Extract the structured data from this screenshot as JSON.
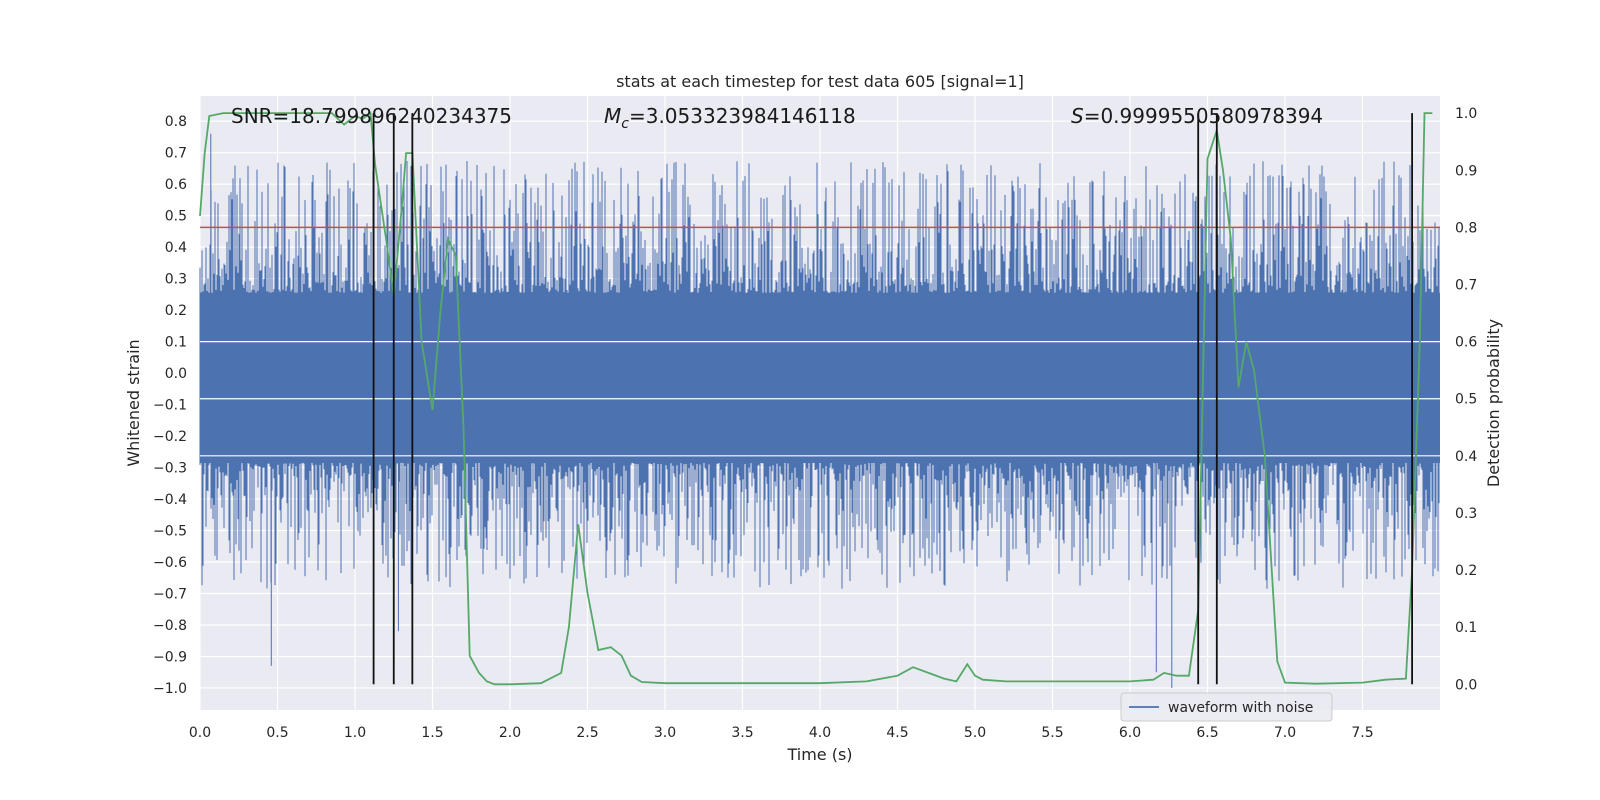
{
  "chart_data": {
    "type": "line",
    "title": "stats at each timestep for test data 605 [signal=1]",
    "xlabel": "Time (s)",
    "ylabel": "Whitened strain",
    "y2label": "Detection probability",
    "xlim": [
      0.0,
      8.0
    ],
    "ylim": [
      -1.07,
      0.88
    ],
    "y2lim": [
      -0.045,
      1.03
    ],
    "xticks": [
      "0.0",
      "0.5",
      "1.0",
      "1.5",
      "2.0",
      "2.5",
      "3.0",
      "3.5",
      "4.0",
      "4.5",
      "5.0",
      "5.5",
      "6.0",
      "6.5",
      "7.0",
      "7.5"
    ],
    "yticks": [
      "0.8",
      "0.7",
      "0.6",
      "0.5",
      "0.4",
      "0.3",
      "0.2",
      "0.1",
      "0.0",
      "−0.1",
      "−0.2",
      "−0.3",
      "−0.4",
      "−0.5",
      "−0.6",
      "−0.7",
      "−0.8",
      "−0.9",
      "−1.0"
    ],
    "y2ticks": [
      "1.0",
      "0.9",
      "0.8",
      "0.7",
      "0.6",
      "0.5",
      "0.4",
      "0.3",
      "0.2",
      "0.1",
      "0.0"
    ],
    "grid": true,
    "legend": {
      "placement": "bottom-right",
      "entries": [
        "waveform with noise"
      ]
    },
    "annotations": {
      "snr": "SNR=18.799896240234375",
      "mc_symbol": "M",
      "mc_sub": "c",
      "mc_value": "=3.053323984146118",
      "s_symbol": "S",
      "s_value": "=0.9999550580978394"
    },
    "threshold": {
      "axis": "y2",
      "value": 0.8
    },
    "detection_lines_x": [
      1.12,
      1.25,
      1.37,
      6.44,
      6.56,
      7.82
    ],
    "waveform": {
      "name": "waveform with noise",
      "band_upper": 0.255,
      "band_lower": -0.285,
      "spike_range": [
        -1.0,
        0.8
      ]
    },
    "probability": {
      "x": [
        0.0,
        0.03,
        0.06,
        0.15,
        0.3,
        0.5,
        0.7,
        0.85,
        0.93,
        1.0,
        1.05,
        1.1,
        1.13,
        1.2,
        1.25,
        1.3,
        1.33,
        1.37,
        1.43,
        1.5,
        1.55,
        1.6,
        1.65,
        1.7,
        1.74,
        1.8,
        1.85,
        1.9,
        2.0,
        2.2,
        2.33,
        2.38,
        2.44,
        2.5,
        2.57,
        2.65,
        2.72,
        2.78,
        2.85,
        3.0,
        3.5,
        4.0,
        4.3,
        4.5,
        4.6,
        4.7,
        4.8,
        4.88,
        4.95,
        5.0,
        5.05,
        5.2,
        5.5,
        5.7,
        6.0,
        6.15,
        6.22,
        6.3,
        6.38,
        6.44,
        6.5,
        6.56,
        6.6,
        6.65,
        6.7,
        6.75,
        6.8,
        6.87,
        6.95,
        7.0,
        7.2,
        7.5,
        7.65,
        7.78,
        7.82,
        7.87,
        7.9,
        7.95
      ],
      "y": [
        0.82,
        0.93,
        0.995,
        1.0,
        1.0,
        1.0,
        1.0,
        1.0,
        0.98,
        0.995,
        0.99,
        1.0,
        0.91,
        0.78,
        0.68,
        0.83,
        0.93,
        0.93,
        0.6,
        0.48,
        0.65,
        0.78,
        0.75,
        0.45,
        0.05,
        0.02,
        0.005,
        0.0,
        0.0,
        0.002,
        0.02,
        0.1,
        0.28,
        0.16,
        0.06,
        0.065,
        0.05,
        0.015,
        0.004,
        0.002,
        0.002,
        0.002,
        0.005,
        0.015,
        0.03,
        0.02,
        0.01,
        0.005,
        0.035,
        0.015,
        0.008,
        0.005,
        0.005,
        0.005,
        0.005,
        0.008,
        0.02,
        0.015,
        0.015,
        0.13,
        0.92,
        0.97,
        0.9,
        0.78,
        0.52,
        0.6,
        0.55,
        0.4,
        0.04,
        0.003,
        0.001,
        0.003,
        0.008,
        0.01,
        0.2,
        0.6,
        1.0,
        1.0
      ]
    }
  }
}
